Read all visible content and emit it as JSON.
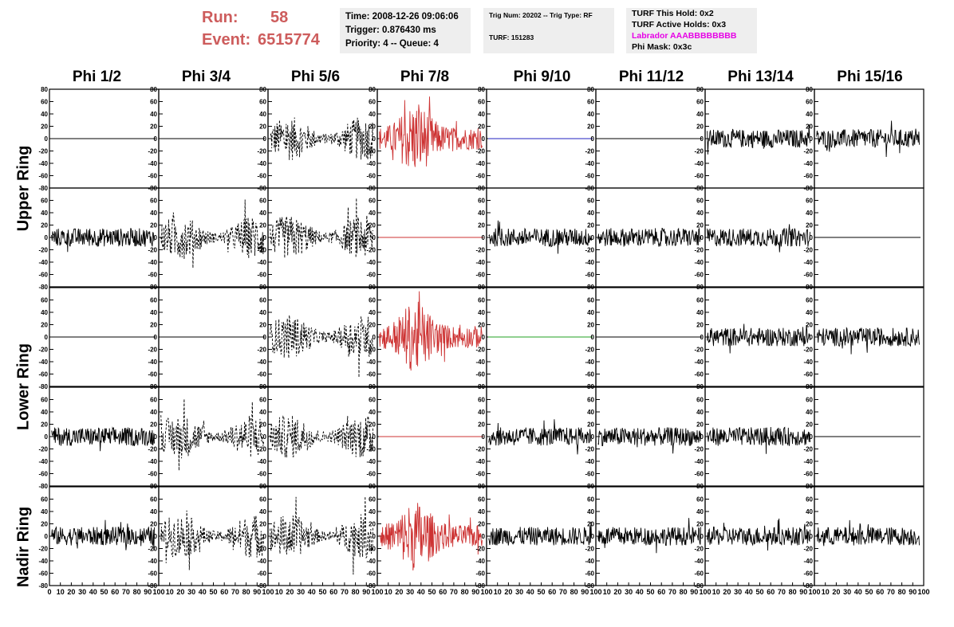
{
  "header": {
    "run_label": "Run:",
    "run_value": "58",
    "event_label": "Event:",
    "event_value": "6515774",
    "info1": {
      "time": "Time: 2008-12-26 09:06:06",
      "trigger": "Trigger: 0.876430 ms",
      "priority": "Priority: 4 -- Queue: 4"
    },
    "info2": {
      "trig": "Trig Num: 20202 -- Trig Type: RF",
      "turf": "TURF: 151283"
    },
    "info3": {
      "this_hold": "TURF This Hold: 0x2",
      "active_holds": "TURF Active Holds: 0x3",
      "labrador": "Labrador AAABBBBBBBB",
      "phi_mask": "Phi Mask: 0x3c"
    }
  },
  "columns": [
    "Phi 1/2",
    "Phi 3/4",
    "Phi 5/6",
    "Phi 7/8",
    "Phi 9/10",
    "Phi 11/12",
    "Phi 13/14",
    "Phi 15/16"
  ],
  "rings": [
    "Upper Ring",
    "Lower Ring",
    "Nadir Ring"
  ],
  "colors": {
    "red": "#cd3333",
    "blue": "#2020c0",
    "green": "#20a020",
    "black": "#000000",
    "title_red": "#cd5c5c",
    "magenta": "#e600e6"
  },
  "chart_data": {
    "type": "line",
    "ylim": [
      -80,
      80
    ],
    "xlim": [
      0,
      100
    ],
    "y_ticks": [
      80,
      60,
      40,
      20,
      0,
      -20,
      -40,
      -60,
      -80
    ],
    "x_ticks": [
      0,
      10,
      20,
      30,
      40,
      50,
      60,
      70,
      80,
      90,
      100
    ],
    "x_tick_labels": [
      "0",
      "10",
      "20",
      "30",
      "40",
      "50",
      "60",
      "70",
      "80",
      "90",
      "100"
    ],
    "panels": [
      [
        "flat",
        "flat",
        "dashed-noise",
        "red-burst",
        "flat-blue",
        "flat",
        "noise",
        "noise"
      ],
      [
        "noise",
        "dashed-noise",
        "dashed-noise",
        "flat-red",
        "noise",
        "noise",
        "noise",
        "flat"
      ],
      [
        "flat",
        "flat",
        "dashed-noise",
        "red-burst",
        "flat-green",
        "flat",
        "noise",
        "noise"
      ],
      [
        "noise",
        "dashed-noise",
        "dashed-noise",
        "flat-red",
        "noise",
        "noise",
        "noise",
        "flat"
      ],
      [
        "noise",
        "dashed-noise",
        "dashed-noise",
        "red-burst",
        "noise",
        "noise",
        "noise",
        "noise"
      ]
    ]
  }
}
